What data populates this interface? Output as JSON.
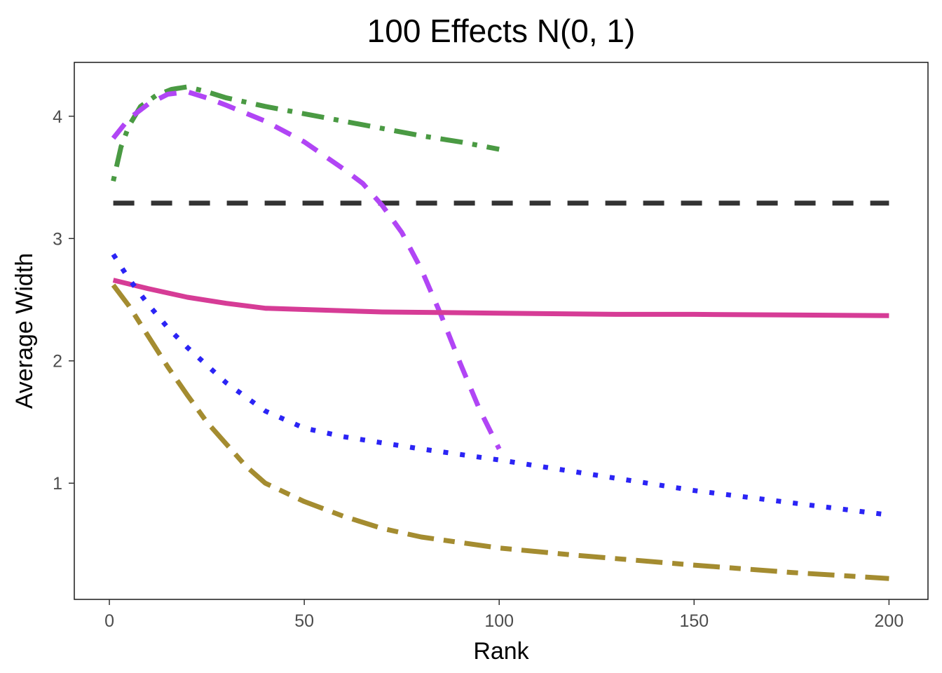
{
  "chart_data": {
    "type": "line",
    "title": "100 Effects N(0, 1)",
    "xlabel": "Rank",
    "ylabel": "Average Width",
    "xlim": [
      -9,
      210
    ],
    "ylim": [
      0.05,
      4.44
    ],
    "xticks": [
      0,
      50,
      100,
      150,
      200
    ],
    "yticks": [
      1,
      2,
      3,
      4
    ],
    "grid": false,
    "legend": "none",
    "series": [
      {
        "name": "constant-dashed-black",
        "color": "#333333",
        "style": "longdash",
        "x": [
          1,
          200
        ],
        "y": [
          3.29,
          3.29
        ]
      },
      {
        "name": "dotdash-green",
        "color": "#4a9a43",
        "style": "dotdash",
        "x": [
          1,
          3,
          5,
          8,
          12,
          16,
          20,
          25,
          30,
          40,
          50,
          60,
          70,
          80,
          90,
          100
        ],
        "y": [
          3.47,
          3.75,
          3.92,
          4.08,
          4.17,
          4.22,
          4.24,
          4.2,
          4.15,
          4.08,
          4.02,
          3.96,
          3.9,
          3.84,
          3.79,
          3.73
        ]
      },
      {
        "name": "dashed-purple",
        "color": "#b145f5",
        "style": "dashed",
        "x": [
          1,
          5,
          10,
          15,
          20,
          25,
          30,
          40,
          50,
          60,
          65,
          70,
          75,
          80,
          85,
          90,
          95,
          100
        ],
        "y": [
          3.82,
          3.98,
          4.1,
          4.18,
          4.2,
          4.15,
          4.09,
          3.96,
          3.79,
          3.57,
          3.45,
          3.27,
          3.05,
          2.75,
          2.38,
          1.98,
          1.6,
          1.28
        ]
      },
      {
        "name": "solid-magenta",
        "color": "#d63c96",
        "style": "solid",
        "x": [
          1,
          10,
          20,
          30,
          40,
          50,
          70,
          100,
          130,
          150,
          200
        ],
        "y": [
          2.66,
          2.59,
          2.52,
          2.47,
          2.43,
          2.42,
          2.4,
          2.39,
          2.38,
          2.38,
          2.37
        ]
      },
      {
        "name": "dotted-blue",
        "color": "#2b24f5",
        "style": "dotted",
        "x": [
          1,
          5,
          10,
          15,
          20,
          30,
          40,
          50,
          60,
          70,
          80,
          100,
          120,
          150,
          175,
          200
        ],
        "y": [
          2.87,
          2.67,
          2.46,
          2.27,
          2.11,
          1.82,
          1.59,
          1.45,
          1.38,
          1.33,
          1.28,
          1.19,
          1.09,
          0.94,
          0.84,
          0.74
        ]
      },
      {
        "name": "longdash-olive",
        "color": "#a48c30",
        "style": "twodash",
        "x": [
          1,
          5,
          10,
          15,
          20,
          25,
          30,
          35,
          40,
          50,
          60,
          70,
          80,
          100,
          120,
          150,
          175,
          200
        ],
        "y": [
          2.62,
          2.45,
          2.2,
          1.95,
          1.72,
          1.5,
          1.32,
          1.14,
          1.0,
          0.85,
          0.73,
          0.63,
          0.56,
          0.47,
          0.41,
          0.33,
          0.27,
          0.22
        ]
      }
    ]
  }
}
